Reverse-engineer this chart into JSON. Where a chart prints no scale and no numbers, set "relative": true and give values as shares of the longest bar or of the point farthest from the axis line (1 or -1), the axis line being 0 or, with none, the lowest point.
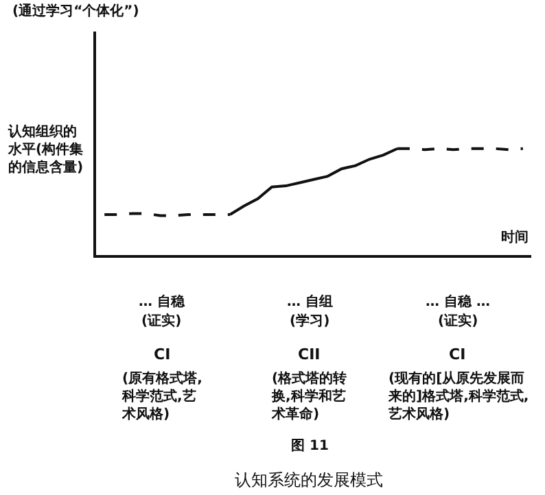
{
  "chart_data": {
    "type": "line",
    "relative": true,
    "annotations": [
      "(通过学习“个体化”)",
      "… 自稳",
      "(证实)",
      "CI",
      "(原有格式塔,科学范式,艺术风格)",
      "… 自组",
      "(学习)",
      "CII",
      "(格式塔的转换,科学和艺术革命)",
      "… 自稳 …",
      "(证实)",
      "CI",
      "(现有的[从原先发展而来的]格式塔,科学范式,艺术风格)",
      "图 11",
      "认知系统的发展模式"
    ],
    "ylabel": "认知组织的水平(构件集的信息含量)",
    "xlabel": "时间",
    "categories": [
      null,
      null,
      null,
      null,
      null,
      null,
      null,
      null,
      null,
      null,
      null,
      null,
      null,
      null,
      null,
      null,
      null,
      null,
      null,
      null,
      null,
      null,
      null,
      null,
      null,
      null,
      null,
      null,
      null,
      null,
      null
    ],
    "grid": false,
    "marker": "none",
    "series": [
      {
        "color": "#111111",
        "line_style": "dashed",
        "values": [
          0.38,
          0.38,
          0.39,
          0.39,
          0.37,
          0.37,
          0.38,
          0.38,
          0.38,
          0.38,
          null,
          null,
          null,
          null,
          null,
          null,
          null,
          null,
          null,
          null,
          null,
          null,
          null,
          null,
          null,
          null,
          null,
          null,
          null,
          null,
          null
        ]
      },
      {
        "color": "#111111",
        "line_style": "solid",
        "values": [
          null,
          null,
          null,
          null,
          null,
          null,
          null,
          null,
          null,
          0.38,
          0.46,
          0.53,
          0.64,
          0.65,
          0.68,
          0.71,
          0.74,
          0.81,
          0.84,
          0.9,
          0.94,
          1.0,
          null,
          null,
          null,
          null,
          null,
          null,
          null,
          null,
          null
        ]
      },
      {
        "color": "#111111",
        "line_style": "dashed",
        "values": [
          null,
          null,
          null,
          null,
          null,
          null,
          null,
          null,
          null,
          null,
          null,
          null,
          null,
          null,
          null,
          null,
          null,
          null,
          null,
          null,
          null,
          1.0,
          1.0,
          0.99,
          1.0,
          0.99,
          1.0,
          1.0,
          1.0,
          0.99,
          1.0
        ]
      }
    ]
  }
}
